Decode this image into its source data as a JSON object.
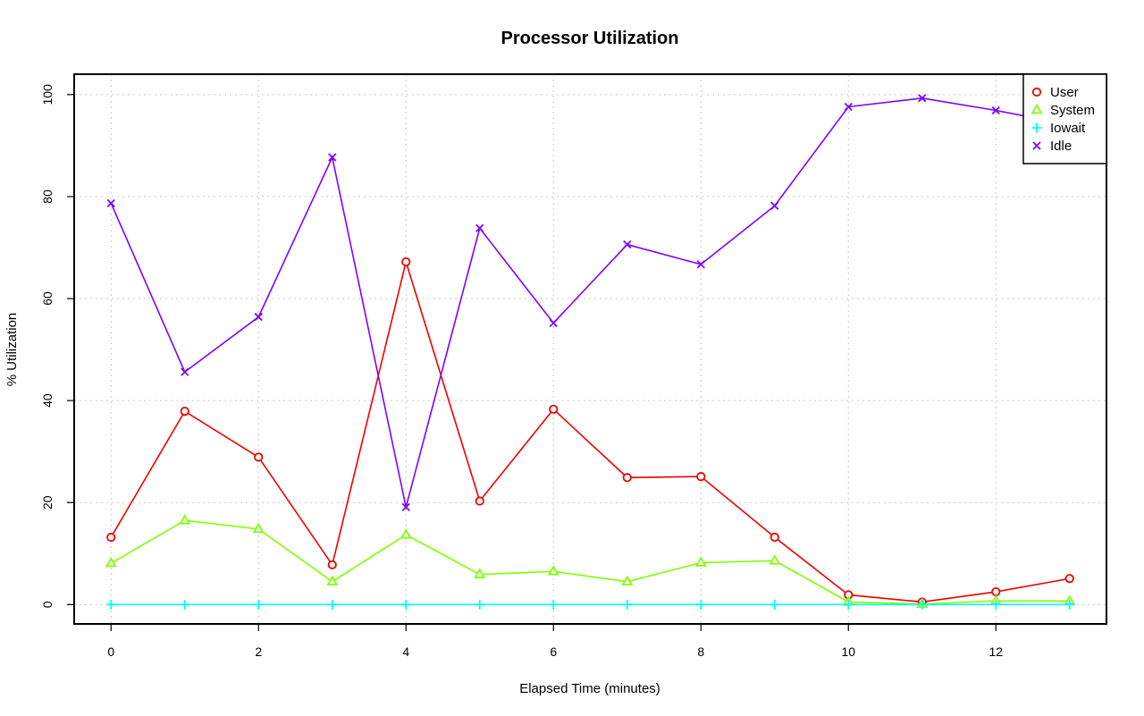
{
  "chart_data": {
    "type": "line",
    "title": "Processor Utilization",
    "xlabel": "Elapsed Time (minutes)",
    "ylabel": "% Utilization",
    "xlim": [
      -0.5,
      13.5
    ],
    "ylim": [
      -3.8,
      104
    ],
    "x_ticks": [
      0,
      2,
      4,
      6,
      8,
      10,
      12
    ],
    "y_ticks": [
      0,
      20,
      40,
      60,
      80,
      100
    ],
    "grid": true,
    "legend_position": "top-right",
    "x": [
      0,
      1,
      2,
      3,
      4,
      5,
      6,
      7,
      8,
      9,
      10,
      11,
      12,
      13
    ],
    "series": [
      {
        "name": "User",
        "color": "#ee0000",
        "marker": "circle",
        "values": [
          13.2,
          37.9,
          28.9,
          7.8,
          67.2,
          20.3,
          38.3,
          24.9,
          25.1,
          13.2,
          1.9,
          0.5,
          2.5,
          5.1
        ]
      },
      {
        "name": "System",
        "color": "#80ff00",
        "marker": "triangle",
        "values": [
          8.1,
          16.5,
          14.8,
          4.5,
          13.7,
          5.9,
          6.5,
          4.5,
          8.2,
          8.6,
          0.5,
          0.1,
          0.7,
          0.7
        ]
      },
      {
        "name": "Iowait",
        "color": "#00ffff",
        "marker": "plus",
        "values": [
          0,
          0,
          0,
          0,
          0,
          0,
          0,
          0,
          0,
          0,
          0,
          0,
          0,
          0
        ]
      },
      {
        "name": "Idle",
        "color": "#8000ff",
        "marker": "cross",
        "values": [
          78.7,
          45.6,
          56.4,
          87.7,
          19.1,
          73.8,
          55.2,
          70.6,
          66.7,
          78.2,
          97.6,
          99.3,
          96.9,
          94.1
        ]
      }
    ]
  }
}
